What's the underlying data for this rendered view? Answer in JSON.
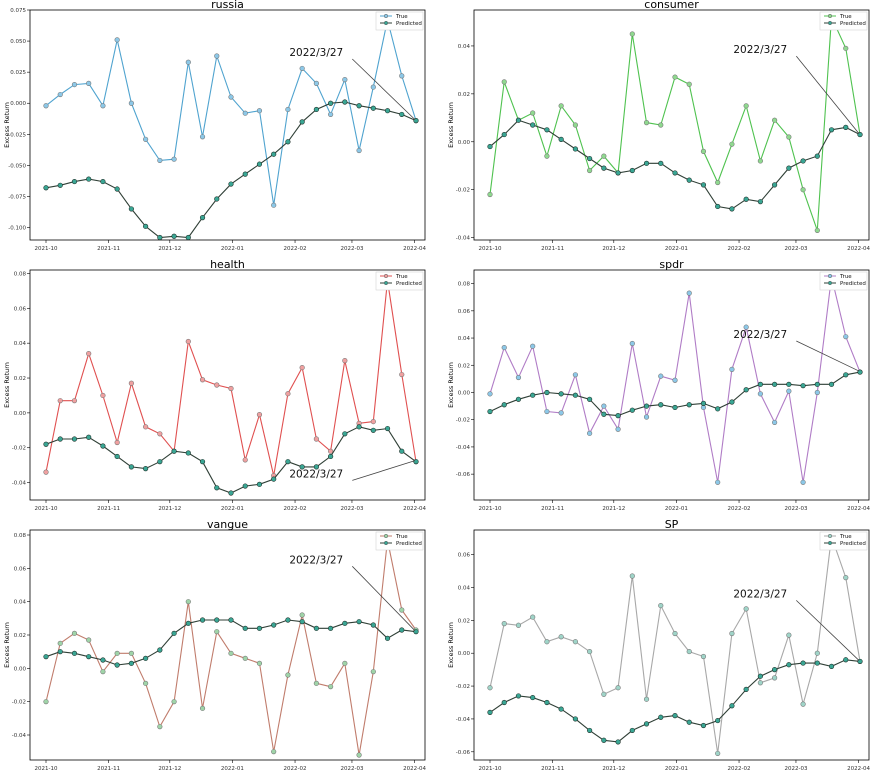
{
  "x_ticks": [
    "2021-10",
    "2021-11",
    "2021-12",
    "2022-01",
    "2022-02",
    "2022-03",
    "2022-04"
  ],
  "y_label": "Excess Return",
  "legend": [
    "True",
    "Predicted"
  ],
  "annotation": "2022/3/27",
  "predicted_color": "#2f3f36",
  "predicted_marker": "#3aa694",
  "chart_data": [
    {
      "type": "line",
      "title": "russia",
      "ylim": [
        -0.11,
        0.075
      ],
      "y_decimals": 3,
      "yticks": [
        -0.1,
        -0.075,
        -0.05,
        -0.025,
        0,
        0.025,
        0.05,
        0.075
      ],
      "colors": {
        "true_line": "#4fa3cf",
        "true_marker": "#8cc8e8"
      },
      "annotation_text_at": [
        0.14,
        0.038
      ],
      "series": [
        {
          "name": "True",
          "values": [
            -0.002,
            0.007,
            0.015,
            0.016,
            -0.002,
            0.051,
            0.0,
            -0.029,
            -0.046,
            -0.045,
            0.033,
            -0.027,
            0.038,
            0.005,
            -0.008,
            -0.006,
            -0.082,
            -0.005,
            0.028,
            0.016,
            -0.009,
            0.019,
            -0.038,
            0.013,
            0.067,
            0.022,
            -0.014
          ]
        },
        {
          "name": "Predicted",
          "values": [
            -0.068,
            -0.066,
            -0.063,
            -0.061,
            -0.063,
            -0.069,
            -0.085,
            -0.099,
            -0.108,
            -0.107,
            -0.108,
            -0.092,
            -0.077,
            -0.065,
            -0.057,
            -0.049,
            -0.041,
            -0.031,
            -0.015,
            -0.005,
            0.0,
            0.001,
            -0.002,
            -0.004,
            -0.006,
            -0.009,
            -0.014
          ]
        }
      ]
    },
    {
      "type": "line",
      "title": "consumer",
      "ylim": [
        -0.041,
        0.055
      ],
      "y_decimals": 2,
      "yticks": [
        -0.04,
        -0.02,
        0,
        0.02,
        0.04
      ],
      "colors": {
        "true_line": "#4fc24f",
        "true_marker": "#8fd98f"
      },
      "annotation_text_at": [
        0.137,
        0.037
      ],
      "series": [
        {
          "name": "True",
          "values": [
            -0.022,
            0.025,
            0.009,
            0.012,
            -0.006,
            0.015,
            0.007,
            -0.012,
            -0.006,
            -0.013,
            0.045,
            0.008,
            0.007,
            0.027,
            0.024,
            -0.004,
            -0.017,
            -0.001,
            0.015,
            -0.008,
            0.009,
            0.002,
            -0.02,
            -0.037,
            0.052,
            0.039,
            0.003
          ]
        },
        {
          "name": "Predicted",
          "values": [
            -0.002,
            0.003,
            0.009,
            0.007,
            0.005,
            0.001,
            -0.003,
            -0.007,
            -0.011,
            -0.013,
            -0.012,
            -0.009,
            -0.009,
            -0.013,
            -0.016,
            -0.018,
            -0.027,
            -0.028,
            -0.024,
            -0.025,
            -0.018,
            -0.011,
            -0.008,
            -0.006,
            0.005,
            0.006,
            0.003
          ]
        }
      ]
    },
    {
      "type": "line",
      "title": "health",
      "ylim": [
        -0.05,
        0.082
      ],
      "y_decimals": 2,
      "yticks": [
        -0.04,
        -0.02,
        0,
        0.02,
        0.04,
        0.06,
        0.08
      ],
      "colors": {
        "true_line": "#e05050",
        "true_marker": "#f0a0a0"
      },
      "annotation_text_at": [
        0.127,
        -0.037
      ],
      "series": [
        {
          "name": "True",
          "values": [
            -0.034,
            0.007,
            0.007,
            0.034,
            0.01,
            -0.017,
            0.017,
            -0.008,
            -0.012,
            -0.022,
            0.041,
            0.019,
            0.016,
            0.014,
            -0.027,
            -0.001,
            -0.036,
            0.011,
            0.026,
            -0.015,
            -0.022,
            0.03,
            -0.006,
            -0.005,
            0.076,
            0.022,
            -0.028
          ]
        },
        {
          "name": "Predicted",
          "values": [
            -0.018,
            -0.015,
            -0.015,
            -0.014,
            -0.019,
            -0.025,
            -0.031,
            -0.032,
            -0.028,
            -0.022,
            -0.023,
            -0.028,
            -0.043,
            -0.046,
            -0.042,
            -0.041,
            -0.038,
            -0.028,
            -0.031,
            -0.031,
            -0.025,
            -0.012,
            -0.008,
            -0.01,
            -0.009,
            -0.022,
            -0.028
          ]
        }
      ]
    },
    {
      "type": "line",
      "title": "spdr",
      "ylim": [
        -0.079,
        0.09
      ],
      "y_decimals": 2,
      "yticks": [
        -0.06,
        -0.04,
        -0.02,
        0,
        0.02,
        0.04,
        0.06,
        0.08
      ],
      "colors": {
        "true_line": "#b07cc6",
        "true_marker": "#8cc8e8"
      },
      "annotation_text_at": [
        0.118,
        0.04
      ],
      "series": [
        {
          "name": "True",
          "values": [
            -0.001,
            0.033,
            0.011,
            0.034,
            -0.014,
            -0.015,
            0.013,
            -0.03,
            -0.01,
            -0.027,
            0.036,
            -0.018,
            0.012,
            0.009,
            0.073,
            -0.011,
            -0.066,
            0.017,
            0.048,
            -0.001,
            -0.022,
            0.001,
            -0.066,
            0.0,
            0.085,
            0.041,
            0.015
          ]
        },
        {
          "name": "Predicted",
          "values": [
            -0.014,
            -0.009,
            -0.005,
            -0.002,
            0.0,
            -0.001,
            -0.002,
            -0.005,
            -0.016,
            -0.017,
            -0.013,
            -0.01,
            -0.009,
            -0.011,
            -0.009,
            -0.008,
            -0.012,
            -0.007,
            0.002,
            0.006,
            0.006,
            0.006,
            0.005,
            0.006,
            0.006,
            0.013,
            0.015
          ]
        }
      ]
    },
    {
      "type": "line",
      "title": "vangue",
      "ylim": [
        -0.055,
        0.083
      ],
      "y_decimals": 2,
      "yticks": [
        -0.04,
        -0.02,
        0,
        0.02,
        0.04,
        0.06,
        0.08
      ],
      "colors": {
        "true_line": "#c07c6c",
        "true_marker": "#9fd4a8"
      },
      "annotation_text_at": [
        0.127,
        0.063
      ],
      "series": [
        {
          "name": "True",
          "values": [
            -0.02,
            0.015,
            0.021,
            0.017,
            -0.002,
            0.009,
            0.009,
            -0.009,
            -0.035,
            -0.02,
            0.04,
            -0.024,
            0.022,
            0.009,
            0.006,
            0.003,
            -0.05,
            -0.004,
            0.032,
            -0.009,
            -0.011,
            0.003,
            -0.052,
            -0.002,
            0.077,
            0.035,
            0.023
          ]
        },
        {
          "name": "Predicted",
          "values": [
            0.007,
            0.01,
            0.009,
            0.007,
            0.005,
            0.002,
            0.003,
            0.006,
            0.011,
            0.021,
            0.027,
            0.029,
            0.029,
            0.029,
            0.024,
            0.024,
            0.026,
            0.029,
            0.028,
            0.024,
            0.024,
            0.027,
            0.028,
            0.026,
            0.018,
            0.023,
            0.022
          ]
        }
      ]
    },
    {
      "type": "line",
      "title": "SP",
      "ylim": [
        -0.065,
        0.075
      ],
      "y_decimals": 2,
      "yticks": [
        -0.06,
        -0.04,
        -0.02,
        0,
        0.02,
        0.04,
        0.06
      ],
      "colors": {
        "true_line": "#a8a8a8",
        "true_marker": "#9fd4c8"
      },
      "annotation_text_at": [
        0.115,
        0.034
      ],
      "series": [
        {
          "name": "True",
          "values": [
            -0.021,
            0.018,
            0.017,
            0.022,
            0.007,
            0.01,
            0.007,
            0.001,
            -0.025,
            -0.021,
            0.047,
            -0.028,
            0.029,
            0.012,
            0.001,
            -0.002,
            -0.061,
            0.012,
            0.027,
            -0.018,
            -0.015,
            0.011,
            -0.031,
            0.0,
            0.071,
            0.046,
            -0.005
          ]
        },
        {
          "name": "Predicted",
          "values": [
            -0.036,
            -0.03,
            -0.026,
            -0.027,
            -0.03,
            -0.034,
            -0.04,
            -0.047,
            -0.053,
            -0.054,
            -0.047,
            -0.043,
            -0.039,
            -0.038,
            -0.042,
            -0.044,
            -0.041,
            -0.032,
            -0.022,
            -0.014,
            -0.01,
            -0.007,
            -0.006,
            -0.006,
            -0.008,
            -0.004,
            -0.005
          ]
        }
      ]
    }
  ]
}
